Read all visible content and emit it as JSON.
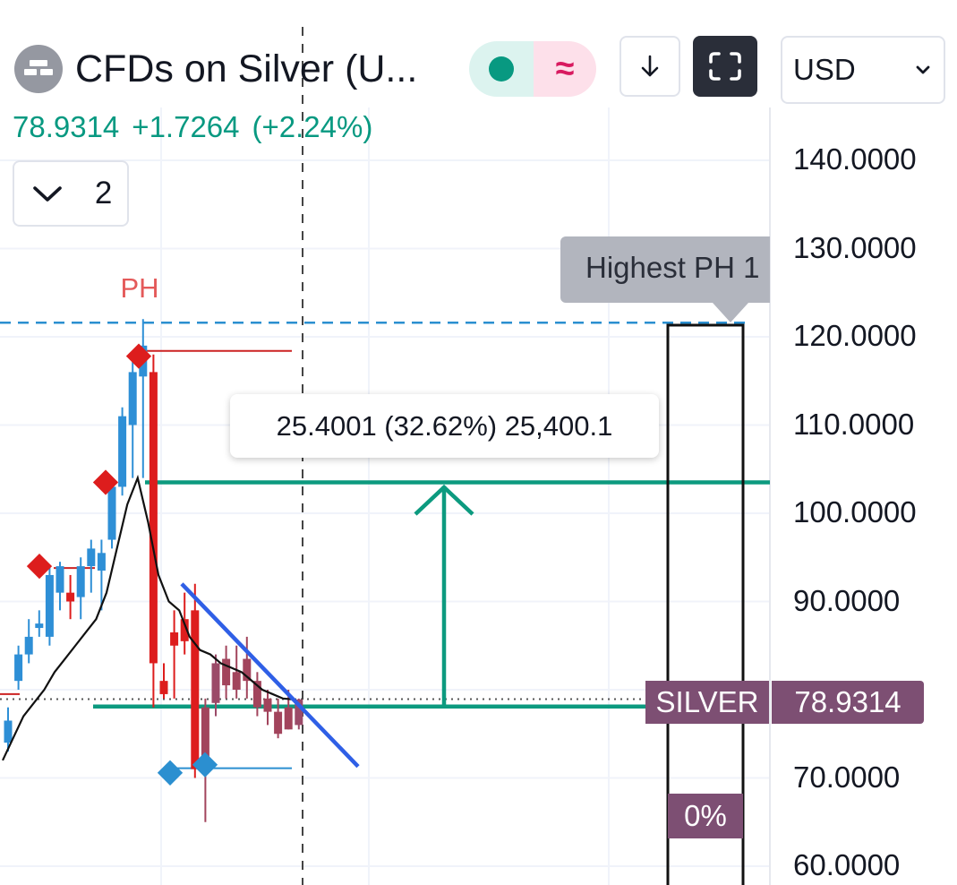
{
  "header": {
    "title": "CFDs on Silver (U...",
    "last_price": "78.9314",
    "change": "+1.7264",
    "change_pct": "(+2.24%)",
    "market_status_glyph": "≈",
    "currency": "USD",
    "collapsed_count": "2",
    "colors": {
      "up": "#089981",
      "brand_pink": "#d81b60",
      "dark_button": "#2a2e39"
    }
  },
  "icons": {
    "logo": "silver-bars-icon",
    "download": "arrow-down-icon",
    "fullscreen": "fullscreen-icon",
    "dropdown": "chevron-down-icon",
    "collapse": "chevron-down-icon"
  },
  "annotations": {
    "ph_label": "PH",
    "measure_text": "25.4001 (32.62%) 25,400.1",
    "highest_tooltip": "Highest PH 1",
    "symbol_badge": "SILVER",
    "price_badge": "78.9314",
    "zero_badge": "0%"
  },
  "chart_data": {
    "type": "candlestick",
    "symbol": "SILVER",
    "ylim": [
      59,
      148
    ],
    "yticks": [
      "140.0000",
      "130.0000",
      "120.0000",
      "110.0000",
      "100.0000",
      "90.0000",
      "70.0000",
      "60.0000"
    ],
    "ytick_values": [
      140,
      130,
      120,
      110,
      100,
      90,
      70,
      60
    ],
    "current_price": 78.9314,
    "candles": [
      {
        "o": 74,
        "h": 78,
        "l": 73,
        "c": 76.5
      },
      {
        "o": 81,
        "h": 85,
        "l": 80,
        "c": 84
      },
      {
        "o": 84,
        "h": 88,
        "l": 83,
        "c": 86
      },
      {
        "o": 87,
        "h": 89,
        "l": 86,
        "c": 87.5
      },
      {
        "o": 86,
        "h": 94,
        "l": 85,
        "c": 93
      },
      {
        "o": 91,
        "h": 94.5,
        "l": 89,
        "c": 94
      },
      {
        "o": 91,
        "h": 93,
        "l": 88,
        "c": 90
      },
      {
        "o": 90.5,
        "h": 95,
        "l": 88,
        "c": 94
      },
      {
        "o": 94,
        "h": 97,
        "l": 91,
        "c": 96
      },
      {
        "o": 93.5,
        "h": 97,
        "l": 89,
        "c": 95.5
      },
      {
        "o": 97,
        "h": 104,
        "l": 96,
        "c": 103
      },
      {
        "o": 103,
        "h": 112,
        "l": 102,
        "c": 111
      },
      {
        "o": 110,
        "h": 118,
        "l": 104,
        "c": 116
      },
      {
        "o": 115.5,
        "h": 122,
        "l": 104,
        "c": 119
      },
      {
        "o": 116,
        "h": 118,
        "l": 78,
        "c": 83
      },
      {
        "o": 81,
        "h": 83,
        "l": 79,
        "c": 79.5
      },
      {
        "o": 86.5,
        "h": 89,
        "l": 79,
        "c": 85
      },
      {
        "o": 88,
        "h": 91,
        "l": 84,
        "c": 85.5
      },
      {
        "o": 89,
        "h": 92,
        "l": 70,
        "c": 71
      },
      {
        "o": 78,
        "h": 79,
        "l": 65,
        "c": 71
      },
      {
        "o": 78.5,
        "h": 84,
        "l": 77,
        "c": 83
      },
      {
        "o": 83.5,
        "h": 85,
        "l": 79,
        "c": 80.5
      },
      {
        "o": 82,
        "h": 85,
        "l": 79,
        "c": 80
      },
      {
        "o": 83.5,
        "h": 86,
        "l": 79,
        "c": 81
      },
      {
        "o": 81,
        "h": 82,
        "l": 77,
        "c": 78
      },
      {
        "o": 79,
        "h": 80,
        "l": 76,
        "c": 77.5
      },
      {
        "o": 77.5,
        "h": 79,
        "l": 74.5,
        "c": 75
      },
      {
        "o": 78,
        "h": 80,
        "l": 75.5,
        "c": 75.5
      },
      {
        "o": 76,
        "h": 79,
        "l": 75.5,
        "c": 78.9
      }
    ],
    "moving_average": [
      72,
      74.5,
      77,
      78.5,
      80,
      82,
      83.5,
      85,
      86.5,
      88,
      91,
      96,
      101,
      104,
      99,
      93,
      90,
      89,
      86,
      84.5,
      84,
      83,
      82.5,
      82,
      81,
      80,
      79.5,
      79,
      78.9
    ],
    "levels": {
      "highest_ph": 121.6,
      "range_top": 103.5,
      "range_bottom": 78.1,
      "range_change": 25.4001,
      "range_change_pct": 32.62
    },
    "pivot_highs": [
      {
        "index": 1,
        "value": 94
      },
      {
        "index": 5,
        "value": 103.5
      },
      {
        "index": 10,
        "value": 117.8
      }
    ],
    "pivot_lows": [
      {
        "index": 15,
        "value": 72
      },
      {
        "index": 19,
        "value": 71.5
      }
    ],
    "trendline": {
      "from": 92,
      "to": 71.3
    }
  }
}
